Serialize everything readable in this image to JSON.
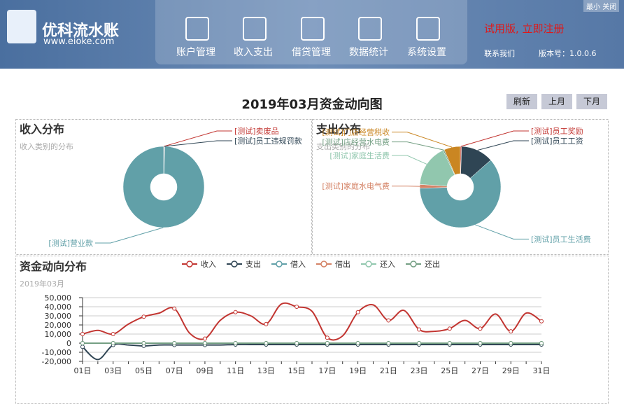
{
  "header": {
    "logo": "优科流水账",
    "site": "www.eioke.com",
    "nav": [
      "账户管理",
      "收入支出",
      "借贷管理",
      "数据统计",
      "系统设置"
    ],
    "trial": "试用版, 立即注册",
    "contact": "联系我们",
    "version": "版本号：1.0.0.6",
    "minimize": "最小",
    "close": "关闭"
  },
  "page_title": "2019年03月资金动向图",
  "toolbar": {
    "refresh": "刷新",
    "prev": "上月",
    "next": "下月"
  },
  "chart_data": [
    {
      "type": "pie",
      "title": "收入分布",
      "subtitle": "收入类别的分布",
      "categories": [
        "[测试]卖废品",
        "[测试]员工违规罚款",
        "[测试]营业款"
      ],
      "values": [
        0.2,
        0.2,
        99.6
      ],
      "colors": [
        "#c23531",
        "#2f4554",
        "#61a0a8"
      ],
      "donut": true
    },
    {
      "type": "pie",
      "title": "支出分布",
      "subtitle": "支出类别的分布",
      "categories": [
        "[测试]员工奖励",
        "[测试]员工工资",
        "[测试]员工生活费",
        "[测试]家庭水电气费",
        "[测试]家庭生活费",
        "[测试]店经营水电费",
        "[测试]门店经营税收"
      ],
      "values": [
        0.5,
        13,
        61,
        1.5,
        17,
        0.5,
        6.5
      ],
      "colors": [
        "#c23531",
        "#2f4554",
        "#61a0a8",
        "#d48265",
        "#91c7ae",
        "#749f83",
        "#ca8622"
      ],
      "donut": true
    },
    {
      "type": "line",
      "title": "资金动向分布",
      "subtitle": "2019年03月",
      "categories": [
        "01日",
        null,
        "03日",
        null,
        "05日",
        null,
        "07日",
        null,
        "09日",
        null,
        "11日",
        null,
        "13日",
        null,
        "15日",
        null,
        "17日",
        null,
        "19日",
        null,
        "21日",
        null,
        "23日",
        null,
        "25日",
        null,
        "27日",
        null,
        "29日",
        null,
        "31日"
      ],
      "ylim": [
        -20000,
        50000
      ],
      "yticks": [
        {
          "value": -20000,
          "label": "-20,000"
        },
        {
          "value": -10000,
          "label": "-10,000"
        },
        0,
        {
          "value": 10000,
          "label": "10,000"
        },
        {
          "value": 20000,
          "label": "20,000"
        },
        {
          "value": 30000,
          "label": "30,000"
        },
        {
          "value": 40000,
          "label": "40,000"
        },
        {
          "value": 50000,
          "label": "50,000"
        }
      ],
      "grid": true,
      "series": [
        {
          "name": "收入",
          "color": "#c23531",
          "values": [
            10000,
            14000,
            10000,
            21000,
            29000,
            33000,
            38000,
            11000,
            5000,
            25000,
            34000,
            30000,
            21000,
            43000,
            40000,
            35000,
            6000,
            8000,
            34000,
            42000,
            25000,
            36000,
            15000,
            13000,
            16000,
            25000,
            16000,
            32000,
            13000,
            33000,
            24000
          ]
        },
        {
          "name": "支出",
          "color": "#2f4554",
          "values": [
            -4000,
            -18000,
            -2000,
            -2000,
            -3000,
            -2000,
            -2000,
            -2000,
            -2000,
            -2000,
            -1500,
            -1500,
            -1500,
            -1500,
            -1500,
            -1500,
            -1500,
            -1500,
            -1500,
            -1500,
            -1500,
            -1500,
            -1500,
            -1500,
            -1500,
            -1500,
            -1500,
            -1500,
            -1500,
            -1500,
            -1500
          ]
        },
        {
          "name": "借入",
          "color": "#61a0a8",
          "values": [
            0,
            0,
            0,
            0,
            0,
            0,
            0,
            0,
            0,
            0,
            0,
            0,
            0,
            0,
            0,
            0,
            0,
            0,
            0,
            0,
            0,
            0,
            0,
            0,
            0,
            0,
            0,
            0,
            0,
            0,
            0
          ]
        },
        {
          "name": "借出",
          "color": "#d48265",
          "values": [
            0,
            0,
            0,
            0,
            0,
            0,
            0,
            0,
            0,
            0,
            0,
            0,
            0,
            0,
            0,
            0,
            0,
            0,
            0,
            0,
            0,
            0,
            0,
            0,
            0,
            0,
            0,
            0,
            0,
            0,
            0
          ]
        },
        {
          "name": "还入",
          "color": "#91c7ae",
          "values": [
            0,
            0,
            0,
            0,
            0,
            0,
            0,
            0,
            0,
            0,
            0,
            0,
            0,
            0,
            0,
            0,
            0,
            0,
            0,
            0,
            0,
            0,
            0,
            0,
            0,
            0,
            0,
            0,
            0,
            0,
            0
          ]
        },
        {
          "name": "还出",
          "color": "#749f83",
          "values": [
            0,
            0,
            0,
            0,
            0,
            0,
            0,
            0,
            0,
            0,
            0,
            0,
            0,
            0,
            0,
            0,
            0,
            0,
            0,
            0,
            0,
            0,
            0,
            0,
            0,
            0,
            0,
            0,
            0,
            0,
            0
          ]
        }
      ]
    }
  ]
}
